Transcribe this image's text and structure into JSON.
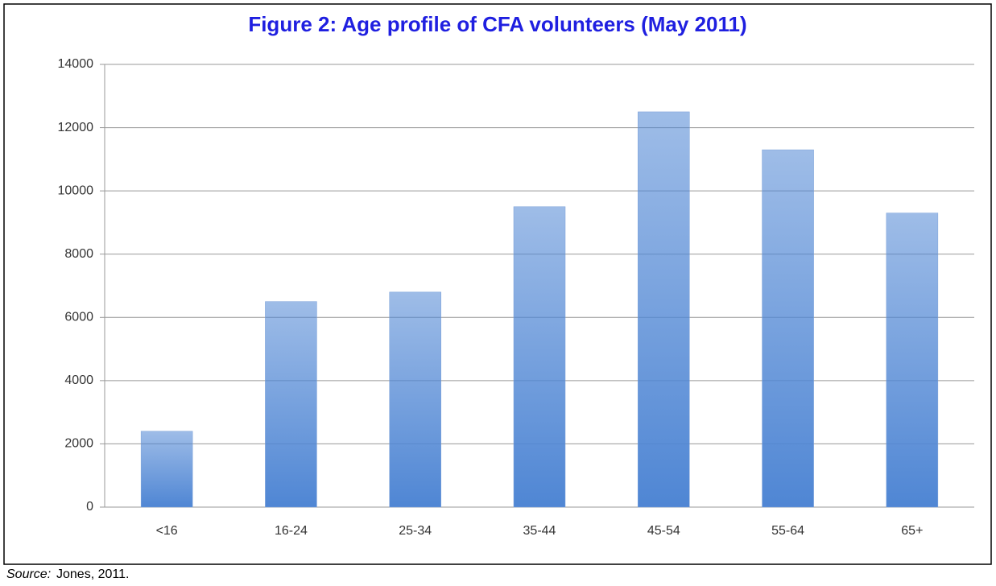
{
  "chart_data": {
    "type": "bar",
    "title": "Figure 2:  Age profile of CFA volunteers (May 2011)",
    "categories": [
      "<16",
      "16-24",
      "25-34",
      "35-44",
      "45-54",
      "55-64",
      "65+"
    ],
    "values": [
      2400,
      6500,
      6800,
      9500,
      12500,
      11300,
      9300
    ],
    "color": "#4f86d4",
    "ylim": [
      0,
      14000
    ],
    "yticks": [
      0,
      2000,
      4000,
      6000,
      8000,
      10000,
      12000,
      14000
    ],
    "grid": true,
    "source_label": "Source:",
    "source_text": "Jones, 2011."
  }
}
